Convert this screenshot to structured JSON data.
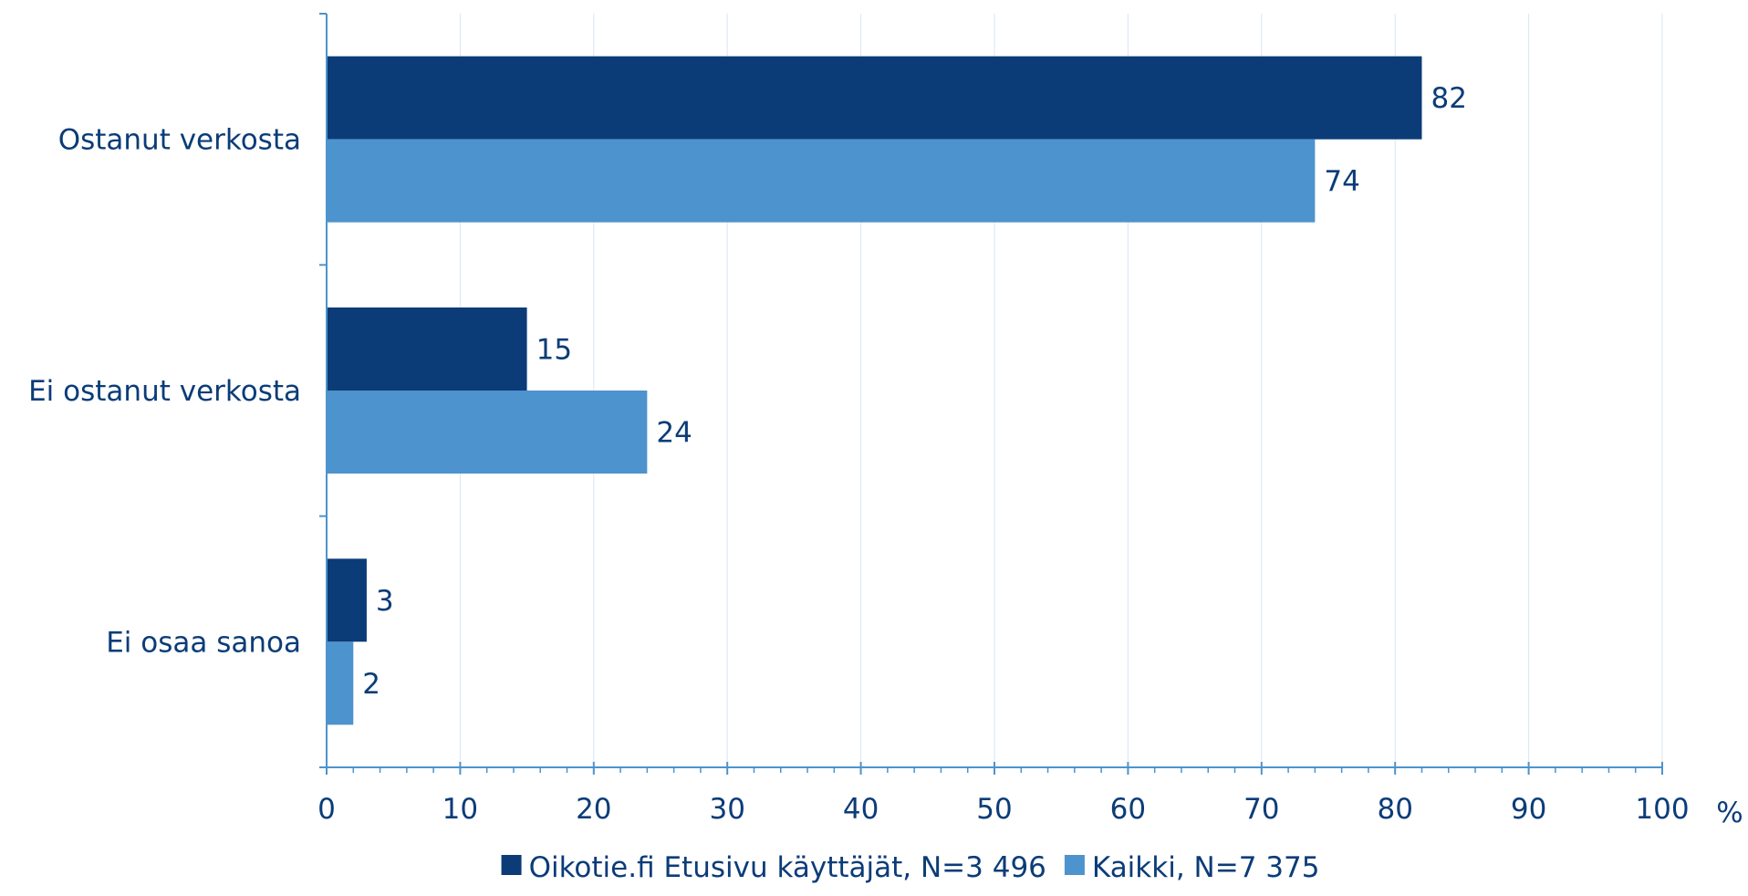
{
  "chart_data": {
    "type": "bar",
    "orientation": "horizontal",
    "categories": [
      "Ostanut verkosta",
      "Ei ostanut verkosta",
      "Ei osaa sanoa"
    ],
    "series": [
      {
        "name": "Oikotie.fi Etusivu käyttäjät, N=3 496",
        "values": [
          82,
          15,
          3
        ],
        "color": "#0b3c78"
      },
      {
        "name": "Kaikki, N=7 375",
        "values": [
          74,
          24,
          2
        ],
        "color": "#4d93cd"
      }
    ],
    "xlim": [
      0,
      100
    ],
    "xticks": [
      "0",
      "10",
      "20",
      "30",
      "40",
      "50",
      "60",
      "70",
      "80",
      "90",
      "100"
    ],
    "xunit": "%",
    "grid": true,
    "legend": "bottom",
    "text_color": "#0b3c78"
  }
}
